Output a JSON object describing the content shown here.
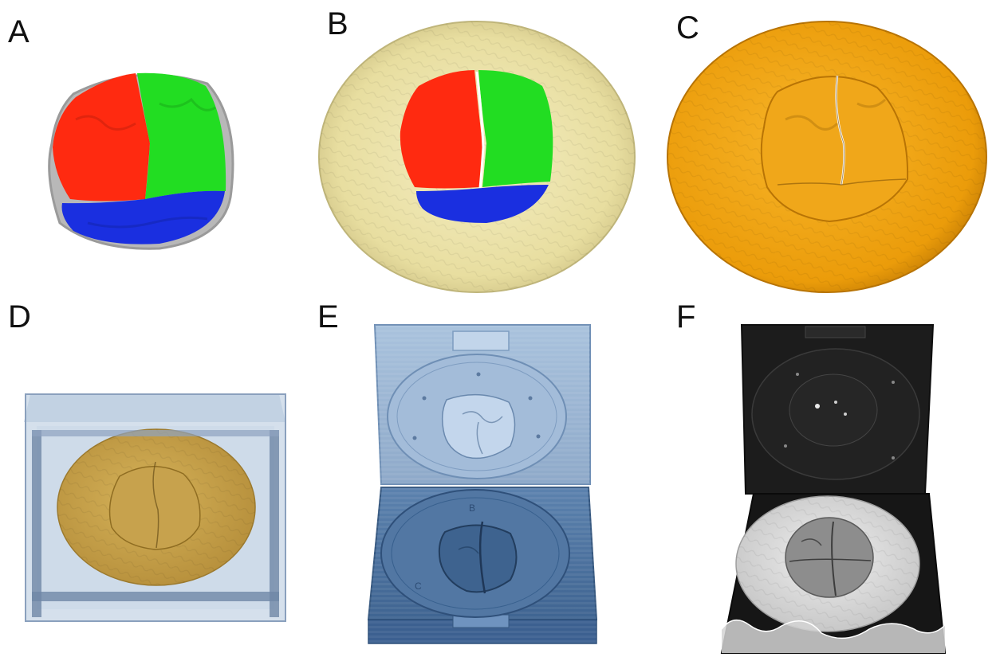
{
  "panels": {
    "a": {
      "label": "A"
    },
    "b": {
      "label": "B"
    },
    "c": {
      "label": "C"
    },
    "d": {
      "label": "D"
    },
    "e": {
      "label": "E",
      "emboss_letters": [
        "B",
        "C"
      ]
    },
    "f": {
      "label": "F"
    }
  },
  "colors": {
    "segment_red": "#ff2a10",
    "segment_green": "#22dd22",
    "segment_blue": "#1a2fe0",
    "disc_beige": "#ece3a8",
    "disc_orange": "#f2a30d",
    "mold_gold": "#c9a34a",
    "box_transparent_blue": "#a9bfd8",
    "mold_light_blue": "#9fb9d6",
    "mold_dark_blue": "#4a6f9c",
    "printed_black": "#1b1b1b",
    "silicone_white": "#d8d8d8"
  }
}
